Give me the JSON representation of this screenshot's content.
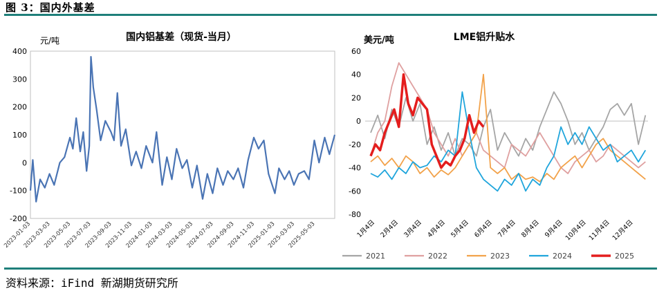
{
  "figure": {
    "title": "图 3：国内外基差",
    "source": "资料来源：iFind 新湖期货研究所"
  },
  "colors": {
    "rule": "#1e7f7a",
    "left_series": "#4a74b4",
    "s2021": "#a5a5a5",
    "s2022": "#dfa0a0",
    "s2023": "#f2a24a",
    "s2024": "#1fa5dc",
    "s2025": "#e41d1d"
  },
  "chart_data": [
    {
      "type": "line",
      "title": "国内铝基差（现货-当月）",
      "ylabel": "元/吨",
      "ylim": [
        -200,
        400
      ],
      "yticks": [
        -200,
        -100,
        0,
        100,
        200,
        300,
        400
      ],
      "xlim": [
        "2023-01-03",
        "2025-07-01"
      ],
      "xticks": [
        "2023-01-03",
        "2023-03-03",
        "2023-05-03",
        "2023-07-03",
        "2023-09-03",
        "2023-11-03",
        "2024-01-03",
        "2024-03-03",
        "2024-05-03",
        "2024-07-03",
        "2024-09-03",
        "2024-11-03",
        "2025-01-03",
        "2025-03-03",
        "2025-05-03"
      ],
      "grid": false,
      "legend": "none",
      "series": [
        {
          "x": [
            "2023-01-03",
            "2023-01-10",
            "2023-01-20",
            "2023-02-01",
            "2023-02-15",
            "2023-03-01",
            "2023-03-15",
            "2023-04-01",
            "2023-04-15",
            "2023-05-01",
            "2023-05-10",
            "2023-05-20",
            "2023-06-01",
            "2023-06-10",
            "2023-06-20",
            "2023-06-28",
            "2023-07-03",
            "2023-07-10",
            "2023-07-20",
            "2023-08-01",
            "2023-08-15",
            "2023-09-01",
            "2023-09-10",
            "2023-09-20",
            "2023-10-01",
            "2023-10-15",
            "2023-11-01",
            "2023-11-15",
            "2023-12-01",
            "2023-12-15",
            "2024-01-03",
            "2024-01-15",
            "2024-02-01",
            "2024-02-15",
            "2024-03-01",
            "2024-03-15",
            "2024-04-01",
            "2024-04-15",
            "2024-05-01",
            "2024-05-15",
            "2024-06-01",
            "2024-06-15",
            "2024-07-01",
            "2024-07-15",
            "2024-08-01",
            "2024-08-15",
            "2024-09-01",
            "2024-09-15",
            "2024-10-01",
            "2024-10-15",
            "2024-11-01",
            "2024-11-15",
            "2024-12-01",
            "2024-12-15",
            "2025-01-03",
            "2025-01-15",
            "2025-02-01",
            "2025-02-15",
            "2025-03-01",
            "2025-03-15",
            "2025-04-01",
            "2025-04-15",
            "2025-05-01",
            "2025-05-15",
            "2025-06-01",
            "2025-06-15",
            "2025-07-01"
          ],
          "values": [
            -100,
            10,
            -140,
            -60,
            -90,
            -40,
            -80,
            0,
            20,
            90,
            50,
            160,
            40,
            110,
            -30,
            60,
            380,
            270,
            190,
            80,
            150,
            110,
            80,
            250,
            60,
            120,
            -10,
            40,
            -20,
            60,
            0,
            110,
            -80,
            20,
            -60,
            50,
            -20,
            10,
            -90,
            -10,
            -130,
            -40,
            -110,
            -20,
            -80,
            -30,
            -60,
            -20,
            -90,
            10,
            90,
            50,
            80,
            -40,
            -110,
            -20,
            -60,
            -30,
            -80,
            -40,
            -30,
            -60,
            80,
            0,
            90,
            30,
            100
          ]
        }
      ]
    },
    {
      "type": "line",
      "title": "LME铝升贴水",
      "ylabel": "美元/吨",
      "ylim": [
        -80,
        60
      ],
      "yticks": [
        -80,
        -60,
        -40,
        -20,
        0,
        20,
        40,
        60
      ],
      "categories": [
        "1月4日",
        "2月4日",
        "3月4日",
        "4月4日",
        "5月4日",
        "6月4日",
        "7月4日",
        "8月4日",
        "9月4日",
        "10月4日",
        "11月4日",
        "12月4日"
      ],
      "grid": false,
      "legend": "bottom",
      "series": [
        {
          "name": "2021",
          "x": [
            1.0,
            1.3,
            1.6,
            1.9,
            2.2,
            2.5,
            2.8,
            3.1,
            3.4,
            3.7,
            4.0,
            4.3,
            4.6,
            4.9,
            5.2,
            5.5,
            5.8,
            6.1,
            6.4,
            6.7,
            7.0,
            7.3,
            7.6,
            7.9,
            8.2,
            8.5,
            8.8,
            9.1,
            9.4,
            9.7,
            10.0,
            10.3,
            10.6,
            10.9,
            11.2,
            11.5,
            11.8,
            12.1,
            12.4,
            12.7
          ],
          "values": [
            -10,
            5,
            -15,
            10,
            -5,
            20,
            0,
            15,
            -20,
            -5,
            -25,
            -10,
            -30,
            -15,
            -20,
            -30,
            -5,
            10,
            -25,
            -10,
            -20,
            -30,
            -15,
            -25,
            -5,
            10,
            25,
            15,
            0,
            -20,
            -10,
            -25,
            -15,
            -5,
            10,
            15,
            5,
            15,
            -20,
            5
          ]
        },
        {
          "name": "2022",
          "x": [
            1.0,
            1.3,
            1.6,
            1.9,
            2.2,
            2.5,
            2.8,
            3.1,
            3.4,
            3.7,
            4.0,
            4.3,
            4.6,
            4.9,
            5.2,
            5.5,
            5.8,
            6.1,
            6.4,
            6.7,
            7.0,
            7.3,
            7.6,
            7.9,
            8.2,
            8.5,
            8.8,
            9.1,
            9.4,
            9.7,
            10.0,
            10.3,
            10.6,
            10.9,
            11.2,
            11.5,
            11.8,
            12.1,
            12.4,
            12.7
          ],
          "values": [
            -30,
            -10,
            0,
            30,
            50,
            40,
            30,
            20,
            10,
            -10,
            -20,
            -30,
            -15,
            -30,
            -20,
            -10,
            -25,
            -30,
            -35,
            -40,
            -20,
            -25,
            -30,
            -20,
            -10,
            -20,
            -30,
            -40,
            -45,
            -35,
            -30,
            -25,
            -35,
            -30,
            -20,
            -25,
            -30,
            -35,
            -40,
            -35
          ]
        },
        {
          "name": "2023",
          "x": [
            1.0,
            1.3,
            1.6,
            1.9,
            2.2,
            2.5,
            2.8,
            3.1,
            3.4,
            3.7,
            4.0,
            4.3,
            4.6,
            4.9,
            5.2,
            5.5,
            5.8,
            6.1,
            6.4,
            6.7,
            7.0,
            7.3,
            7.6,
            7.9,
            8.2,
            8.5,
            8.8,
            9.1,
            9.4,
            9.7,
            10.0,
            10.3,
            10.6,
            10.9,
            11.2,
            11.5,
            11.8,
            12.1,
            12.4,
            12.7
          ],
          "values": [
            -35,
            -30,
            -38,
            -32,
            -40,
            -30,
            -35,
            -45,
            -40,
            -48,
            -42,
            -46,
            -40,
            -30,
            -20,
            -10,
            40,
            -40,
            -45,
            -40,
            -50,
            -45,
            -50,
            -48,
            -52,
            -45,
            -50,
            -40,
            -35,
            -30,
            -40,
            -30,
            -20,
            -15,
            -25,
            -30,
            -35,
            -40,
            -45,
            -50
          ]
        },
        {
          "name": "2024",
          "x": [
            1.0,
            1.3,
            1.6,
            1.9,
            2.2,
            2.5,
            2.8,
            3.1,
            3.4,
            3.7,
            4.0,
            4.3,
            4.6,
            4.9,
            5.2,
            5.5,
            5.8,
            6.1,
            6.4,
            6.7,
            7.0,
            7.3,
            7.6,
            7.9,
            8.2,
            8.5,
            8.8,
            9.1,
            9.4,
            9.7,
            10.0,
            10.3,
            10.6,
            10.9,
            11.2,
            11.5,
            11.8,
            12.1,
            12.4,
            12.7
          ],
          "values": [
            -45,
            -48,
            -42,
            -50,
            -40,
            -45,
            -35,
            -40,
            -38,
            -30,
            -35,
            -25,
            -30,
            25,
            -10,
            -40,
            -50,
            -55,
            -60,
            -50,
            -55,
            -45,
            -60,
            -50,
            -55,
            -40,
            -30,
            -5,
            -20,
            -10,
            -20,
            -5,
            -15,
            -25,
            -20,
            -35,
            -30,
            -25,
            -35,
            -25
          ]
        },
        {
          "name": "2025",
          "x": [
            1.0,
            1.2,
            1.4,
            1.6,
            1.8,
            2.0,
            2.2,
            2.4,
            2.6,
            2.8,
            3.0,
            3.2,
            3.4,
            3.6,
            3.8,
            4.0,
            4.2,
            4.4,
            4.6,
            4.8,
            5.0,
            5.2,
            5.4,
            5.6,
            5.8
          ],
          "values": [
            -30,
            -20,
            -25,
            -10,
            0,
            10,
            -5,
            40,
            15,
            5,
            20,
            15,
            10,
            -20,
            -30,
            -40,
            -35,
            -38,
            -30,
            -25,
            -15,
            5,
            -10,
            0,
            -5
          ]
        }
      ]
    }
  ]
}
